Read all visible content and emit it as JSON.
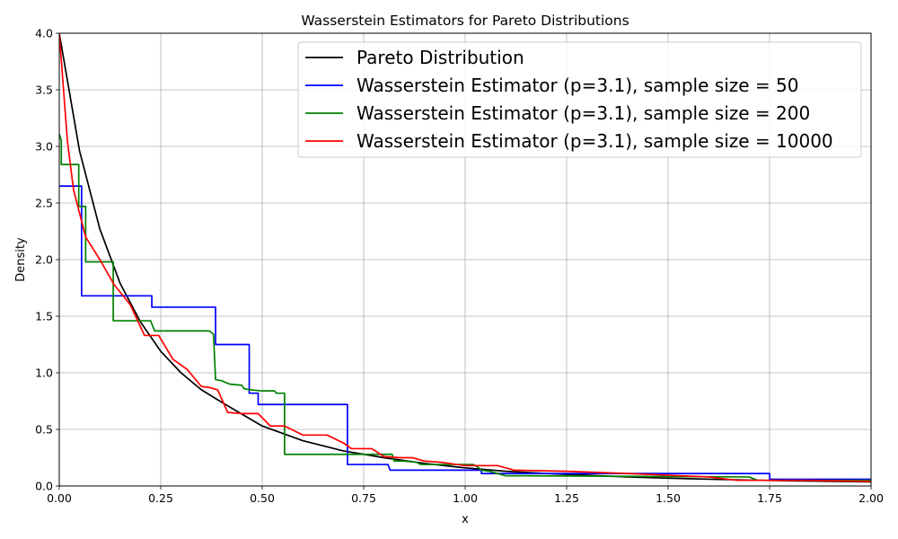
{
  "chart_data": {
    "type": "line",
    "title": "Wasserstein Estimators for Pareto Distributions",
    "xlabel": "x",
    "ylabel": "Density",
    "xlim": [
      0,
      2
    ],
    "ylim": [
      0,
      4
    ],
    "xticks": [
      "0.00",
      "0.25",
      "0.50",
      "0.75",
      "1.00",
      "1.25",
      "1.50",
      "1.75",
      "2.00"
    ],
    "yticks": [
      "0.0",
      "0.5",
      "1.0",
      "1.5",
      "2.0",
      "2.5",
      "3.0",
      "3.5",
      "4.0"
    ],
    "grid": true,
    "legend_position": "top-right",
    "series": [
      {
        "name": "Pareto Distribution",
        "color": "#000000",
        "x": [
          0,
          0.05,
          0.1,
          0.15,
          0.2,
          0.25,
          0.3,
          0.35,
          0.4,
          0.5,
          0.6,
          0.7,
          0.8,
          0.9,
          1.0,
          1.1,
          1.2,
          1.3,
          1.4,
          1.5,
          1.6,
          1.7,
          1.8,
          1.9,
          2.0
        ],
        "y": [
          4.0,
          2.96,
          2.27,
          1.79,
          1.45,
          1.19,
          1.0,
          0.85,
          0.74,
          0.53,
          0.4,
          0.31,
          0.25,
          0.2,
          0.16,
          0.13,
          0.11,
          0.095,
          0.08,
          0.069,
          0.06,
          0.052,
          0.046,
          0.041,
          0.036
        ]
      },
      {
        "name": "Wasserstein Estimator (p=3.1), sample size = 50",
        "color": "#0000ff",
        "x": [
          0,
          0.055,
          0.055,
          0.228,
          0.228,
          0.385,
          0.385,
          0.468,
          0.468,
          0.49,
          0.49,
          0.71,
          0.71,
          0.81,
          0.815,
          1.04,
          1.04,
          1.75,
          1.75,
          2.0
        ],
        "y": [
          2.65,
          2.65,
          1.68,
          1.68,
          1.58,
          1.58,
          1.25,
          1.25,
          0.82,
          0.82,
          0.72,
          0.72,
          0.19,
          0.19,
          0.14,
          0.14,
          0.11,
          0.11,
          0.06,
          0.06
        ]
      },
      {
        "name": "Wasserstein Estimator (p=3.1), sample size = 200",
        "color": "#008000",
        "x": [
          0,
          0.005,
          0.005,
          0.048,
          0.048,
          0.065,
          0.065,
          0.133,
          0.133,
          0.225,
          0.235,
          0.37,
          0.38,
          0.385,
          0.4,
          0.42,
          0.45,
          0.455,
          0.47,
          0.5,
          0.53,
          0.535,
          0.555,
          0.555,
          0.65,
          0.7,
          0.82,
          0.825,
          0.85,
          0.88,
          0.89,
          1.02,
          1.03,
          1.04,
          1.06,
          1.1,
          1.15,
          1.7,
          1.72,
          2.0
        ],
        "y": [
          3.11,
          3.05,
          2.84,
          2.84,
          2.47,
          2.47,
          1.98,
          1.98,
          1.46,
          1.46,
          1.37,
          1.37,
          1.34,
          0.94,
          0.93,
          0.9,
          0.89,
          0.86,
          0.85,
          0.84,
          0.84,
          0.82,
          0.82,
          0.28,
          0.28,
          0.28,
          0.28,
          0.22,
          0.22,
          0.21,
          0.19,
          0.19,
          0.17,
          0.14,
          0.13,
          0.09,
          0.09,
          0.08,
          0.05,
          0.05
        ]
      },
      {
        "name": "Wasserstein Estimator (p=3.1), sample size = 10000",
        "color": "#ff0000",
        "x": [
          0,
          0.02,
          0.035,
          0.065,
          0.1,
          0.135,
          0.175,
          0.21,
          0.245,
          0.28,
          0.315,
          0.35,
          0.37,
          0.39,
          0.415,
          0.45,
          0.49,
          0.52,
          0.555,
          0.6,
          0.66,
          0.7,
          0.72,
          0.77,
          0.8,
          0.84,
          0.87,
          0.9,
          0.94,
          1.0,
          1.08,
          1.12,
          1.25,
          1.4,
          1.6,
          1.67,
          1.85,
          2.0
        ],
        "y": [
          4.0,
          3.05,
          2.62,
          2.2,
          2.0,
          1.78,
          1.6,
          1.33,
          1.33,
          1.12,
          1.03,
          0.88,
          0.87,
          0.85,
          0.65,
          0.64,
          0.64,
          0.53,
          0.53,
          0.45,
          0.45,
          0.38,
          0.33,
          0.33,
          0.26,
          0.25,
          0.25,
          0.22,
          0.21,
          0.18,
          0.18,
          0.14,
          0.13,
          0.11,
          0.08,
          0.05,
          0.05,
          0.04
        ]
      }
    ]
  }
}
